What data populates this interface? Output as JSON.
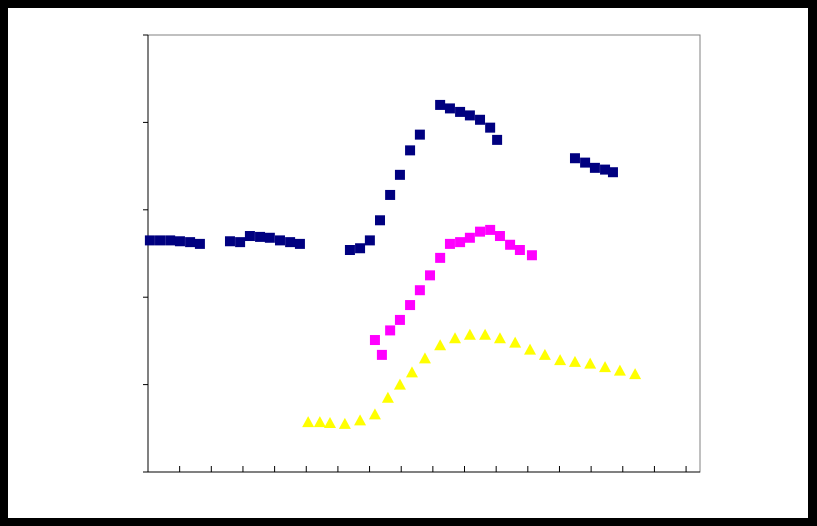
{
  "chart_data": {
    "type": "scatter",
    "xlim": [
      0,
      17.44
    ],
    "xticks": [
      0,
      1,
      2,
      3,
      4,
      5,
      6,
      7,
      8,
      9,
      10,
      11,
      12,
      13,
      14,
      15,
      16,
      17
    ],
    "ylim": [
      0,
      5
    ],
    "yticks": [
      0,
      1,
      2,
      3,
      4,
      5
    ],
    "series": [
      {
        "color": "#000080",
        "marker": "square",
        "x": [
          0.06,
          0.38,
          0.7,
          1.01,
          1.33,
          1.64,
          2.59,
          2.91,
          3.22,
          3.54,
          3.85,
          4.17,
          4.49,
          4.8,
          6.38,
          6.7,
          7.01,
          7.33,
          7.65,
          7.96,
          8.28,
          8.59,
          9.23,
          9.54,
          9.86,
          10.17,
          10.49,
          10.81,
          11.03,
          13.49,
          13.81,
          14.12,
          14.44,
          14.69
        ],
        "values": [
          2.65,
          2.65,
          2.65,
          2.64,
          2.63,
          2.61,
          2.64,
          2.63,
          2.7,
          2.69,
          2.68,
          2.65,
          2.63,
          2.61,
          2.54,
          2.56,
          2.65,
          2.88,
          3.17,
          3.4,
          3.68,
          3.86,
          4.2,
          4.16,
          4.12,
          4.08,
          4.03,
          3.94,
          3.8,
          3.59,
          3.54,
          3.48,
          3.46,
          3.43
        ]
      },
      {
        "color": "#ff00ff",
        "marker": "square",
        "x": [
          7.17,
          7.39,
          7.65,
          7.96,
          8.28,
          8.59,
          8.91,
          9.23,
          9.54,
          9.86,
          10.17,
          10.49,
          10.81,
          11.12,
          11.44,
          11.75,
          12.13
        ],
        "values": [
          1.51,
          1.34,
          1.62,
          1.74,
          1.91,
          2.08,
          2.25,
          2.45,
          2.61,
          2.63,
          2.68,
          2.75,
          2.77,
          2.7,
          2.6,
          2.54,
          2.48
        ]
      },
      {
        "color": "#ffff00",
        "marker": "triangle",
        "x": [
          5.06,
          5.43,
          5.75,
          6.22,
          6.7,
          7.17,
          7.58,
          7.96,
          8.34,
          8.75,
          9.23,
          9.7,
          10.17,
          10.65,
          11.12,
          11.6,
          12.07,
          12.54,
          13.02,
          13.49,
          13.97,
          14.44,
          14.91,
          15.39
        ],
        "values": [
          0.57,
          0.57,
          0.56,
          0.55,
          0.59,
          0.66,
          0.85,
          1.0,
          1.14,
          1.3,
          1.45,
          1.53,
          1.57,
          1.57,
          1.53,
          1.48,
          1.4,
          1.34,
          1.28,
          1.26,
          1.24,
          1.2,
          1.16,
          1.12
        ]
      }
    ]
  }
}
